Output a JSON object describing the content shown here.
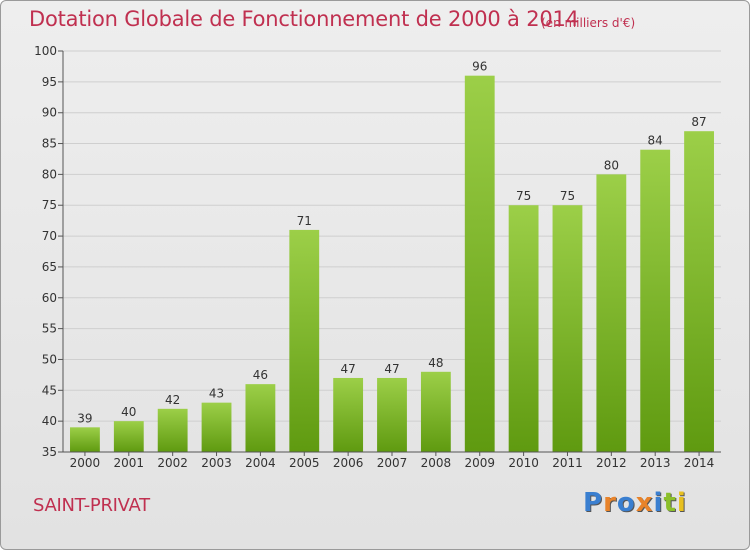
{
  "header": {
    "title": "Dotation Globale de Fonctionnement de 2000 à 2014",
    "subtitle": "(en milliers d'€)"
  },
  "footer": {
    "location": "SAINT-PRIVAT",
    "logo_text": "Proxiti",
    "logo_colors": [
      "#3a7fd0",
      "#e8832a",
      "#3a7fd0",
      "#e8832a",
      "#3a7fd0",
      "#8bbf2a",
      "#e8c020"
    ]
  },
  "colors": {
    "title": "#c03050",
    "bar_top": "#9ccf48",
    "bar_bottom": "#5f9a10",
    "grid": "#cfcfcf",
    "axis": "#555555",
    "text": "#333333"
  },
  "chart_data": {
    "type": "bar",
    "title": "Dotation Globale de Fonctionnement de 2000 à 2014",
    "subtitle": "(en milliers d'€)",
    "categories": [
      "2000",
      "2001",
      "2002",
      "2003",
      "2004",
      "2005",
      "2006",
      "2007",
      "2008",
      "2009",
      "2010",
      "2011",
      "2012",
      "2013",
      "2014"
    ],
    "values": [
      39,
      40,
      42,
      43,
      46,
      71,
      47,
      47,
      48,
      96,
      75,
      75,
      80,
      84,
      87
    ],
    "ylim": [
      35,
      100
    ],
    "yticks": [
      35,
      40,
      45,
      50,
      55,
      60,
      65,
      70,
      75,
      80,
      85,
      90,
      95,
      100
    ],
    "grid": true,
    "data_labels": true
  }
}
